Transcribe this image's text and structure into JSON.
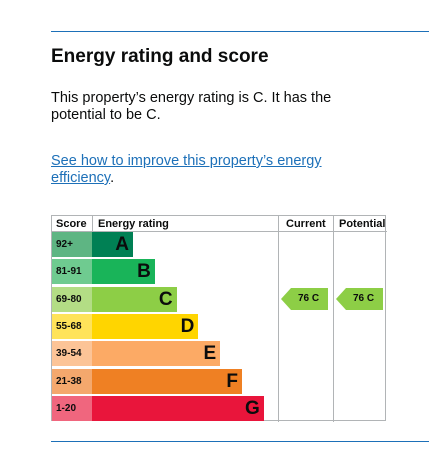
{
  "heading": "Energy rating and score",
  "summary": "This property’s energy rating is C. It has the potential to be C.",
  "improve_link": "See how to improve this property’s energy efficiency",
  "link_suffix": ".",
  "chart": {
    "headers": {
      "score": "Score",
      "energy_rating": "Energy rating",
      "current": "Current",
      "potential": "Potential"
    },
    "bands": [
      {
        "range": "92+",
        "letter": "A",
        "color": "#008054",
        "score_bg": "#5eb583"
      },
      {
        "range": "81-91",
        "letter": "B",
        "color": "#19b459",
        "score_bg": "#6fcb90"
      },
      {
        "range": "69-80",
        "letter": "C",
        "color": "#8dce46",
        "score_bg": "#b3dd85"
      },
      {
        "range": "55-68",
        "letter": "D",
        "color": "#ffd500",
        "score_bg": "#ffe35a"
      },
      {
        "range": "39-54",
        "letter": "E",
        "color": "#fcaa65",
        "score_bg": "#fcc497"
      },
      {
        "range": "21-38",
        "letter": "F",
        "color": "#ef8023",
        "score_bg": "#f4a86d"
      },
      {
        "range": "1-20",
        "letter": "G",
        "color": "#e9153b",
        "score_bg": "#f0667e"
      }
    ],
    "current": {
      "score": 76,
      "letter": "C",
      "label": "76 C",
      "color": "#8dce46"
    },
    "potential": {
      "score": 76,
      "letter": "C",
      "label": "76 C",
      "color": "#8dce46"
    }
  }
}
